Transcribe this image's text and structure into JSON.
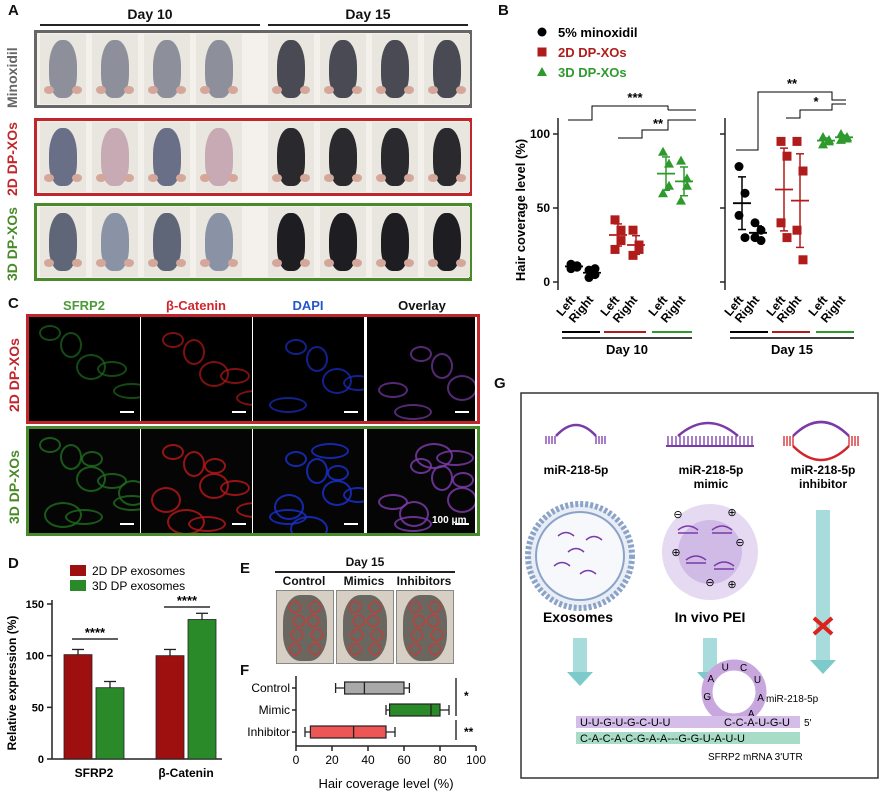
{
  "panel_labels": {
    "a": "A",
    "b": "B",
    "c": "C",
    "d": "D",
    "e": "E",
    "f": "F",
    "g": "G"
  },
  "panel_a": {
    "day10": "Day 10",
    "day15": "Day 15",
    "rows": [
      {
        "label": "Minoxidil",
        "color": "#666666"
      },
      {
        "label": "2D DP-XOs",
        "color": "#c0262b"
      },
      {
        "label": "3D DP-XOs",
        "color": "#4a8a2a"
      }
    ]
  },
  "panel_b": {
    "ylabel": "Hair coverage level (%)",
    "yticks": [
      "0",
      "50",
      "100"
    ],
    "legend": [
      {
        "label": "5% minoxidil",
        "color": "#000000",
        "marker": "circle"
      },
      {
        "label": "2D DP-XOs",
        "color": "#b01c1c",
        "marker": "square"
      },
      {
        "label": "3D DP-XOs",
        "color": "#2e9a2e",
        "marker": "triangle"
      }
    ],
    "xticks": [
      "Left",
      "Right",
      "Left",
      "Right",
      "Left",
      "Right"
    ],
    "groups": [
      "Day 10",
      "Day 15"
    ],
    "sig_left": [
      "***",
      "**"
    ],
    "sig_right": [
      "**",
      "*"
    ]
  },
  "panel_c": {
    "columns": [
      {
        "label": "SFRP2",
        "color": "#4c9a3a"
      },
      {
        "label": "β-Catenin",
        "color": "#d0262b"
      },
      {
        "label": "DAPI",
        "color": "#2457c9"
      },
      {
        "label": "Overlay",
        "color": "#111111"
      }
    ],
    "rows": [
      {
        "label": "2D DP-XOs",
        "color": "#c0262b"
      },
      {
        "label": "3D DP-XOs",
        "color": "#4a8a2a"
      }
    ],
    "scalebar": "100 μm"
  },
  "panel_d": {
    "legend": [
      "2D DP exosomes",
      "3D DP exosomes"
    ],
    "legend_colors": [
      "#9e1010",
      "#2a8a2a"
    ],
    "ylabel": "Relative expression (%)",
    "yticks": [
      "0",
      "50",
      "100",
      "150"
    ],
    "categories": [
      "SFRP2",
      "β-Catenin"
    ],
    "sig": [
      "****",
      "****"
    ]
  },
  "panel_e": {
    "title": "Day 15",
    "labels": [
      "Control",
      "Mimics",
      "Inhibitors"
    ]
  },
  "panel_f": {
    "categories": [
      "Control",
      "Mimic",
      "Inhibitor"
    ],
    "xticks": [
      "0",
      "20",
      "40",
      "60",
      "80",
      "100"
    ],
    "xlabel": "Hair coverage level (%)",
    "sig": [
      "*",
      "**"
    ]
  },
  "panel_g": {
    "items": [
      {
        "title": "miR-218-5p",
        "subtitle": ""
      },
      {
        "title": "miR-218-5p",
        "subtitle": "mimic"
      },
      {
        "title": "miR-218-5p",
        "subtitle": "inhibitor"
      }
    ],
    "exosomes": "Exosomes",
    "pei": "In vivo PEI",
    "loop_seq": "G-A-U-C-U-A-A",
    "mir_seq": "U-U-G-U-G-C-U-U",
    "mir_seq2": "C-C-A-U-G-U",
    "mir_5": "5'",
    "mir_label": "miR-218-5p",
    "mrna_seq": "C-A-C-A-C-G-A-A---G-G-U-A-U-U",
    "mrna_label": "SFRP2 mRNA 3'UTR"
  },
  "chart_data": [
    {
      "type": "scatter",
      "title": "",
      "ylabel": "Hair coverage level (%)",
      "ylim": [
        0,
        100
      ],
      "groups": [
        "Day 10",
        "Day 15"
      ],
      "series": [
        {
          "name": "5% minoxidil",
          "day10_left": [
            12,
            10,
            9,
            11
          ],
          "day10_right": [
            8,
            5,
            3,
            9
          ],
          "day15_left": [
            78,
            60,
            45,
            30
          ],
          "day15_right": [
            40,
            35,
            30,
            28
          ]
        },
        {
          "name": "2D DP-XOs",
          "day10_left": [
            42,
            35,
            22,
            28
          ],
          "day10_right": [
            35,
            25,
            18,
            22
          ],
          "day15_left": [
            95,
            85,
            40,
            30
          ],
          "day15_right": [
            95,
            75,
            35,
            15
          ]
        },
        {
          "name": "3D DP-XOs",
          "day10_left": [
            88,
            80,
            60,
            65
          ],
          "day10_right": [
            82,
            70,
            55,
            65
          ],
          "day15_left": [
            98,
            95,
            93,
            96
          ],
          "day15_right": [
            100,
            98,
            96,
            97
          ]
        }
      ]
    },
    {
      "type": "bar",
      "categories": [
        "SFRP2",
        "β-Catenin"
      ],
      "series": [
        {
          "name": "2D DP exosomes",
          "values": [
            101,
            100
          ],
          "errors": [
            5,
            6
          ]
        },
        {
          "name": "3D DP exosomes",
          "values": [
            69,
            135
          ],
          "errors": [
            6,
            6
          ]
        }
      ],
      "ylabel": "Relative expression (%)",
      "ylim": [
        0,
        150
      ]
    },
    {
      "type": "box",
      "categories": [
        "Control",
        "Mimic",
        "Inhibitor"
      ],
      "boxes": [
        {
          "min": 22,
          "q1": 27,
          "median": 38,
          "q3": 60,
          "max": 63,
          "color": "#a9a9a9"
        },
        {
          "min": 50,
          "q1": 52,
          "median": 75,
          "q3": 80,
          "max": 85,
          "color": "#2a8a2a"
        },
        {
          "min": 5,
          "q1": 8,
          "median": 32,
          "q3": 50,
          "max": 55,
          "color": "#ee5555"
        }
      ],
      "xlabel": "Hair coverage level (%)",
      "xlim": [
        0,
        100
      ]
    }
  ]
}
